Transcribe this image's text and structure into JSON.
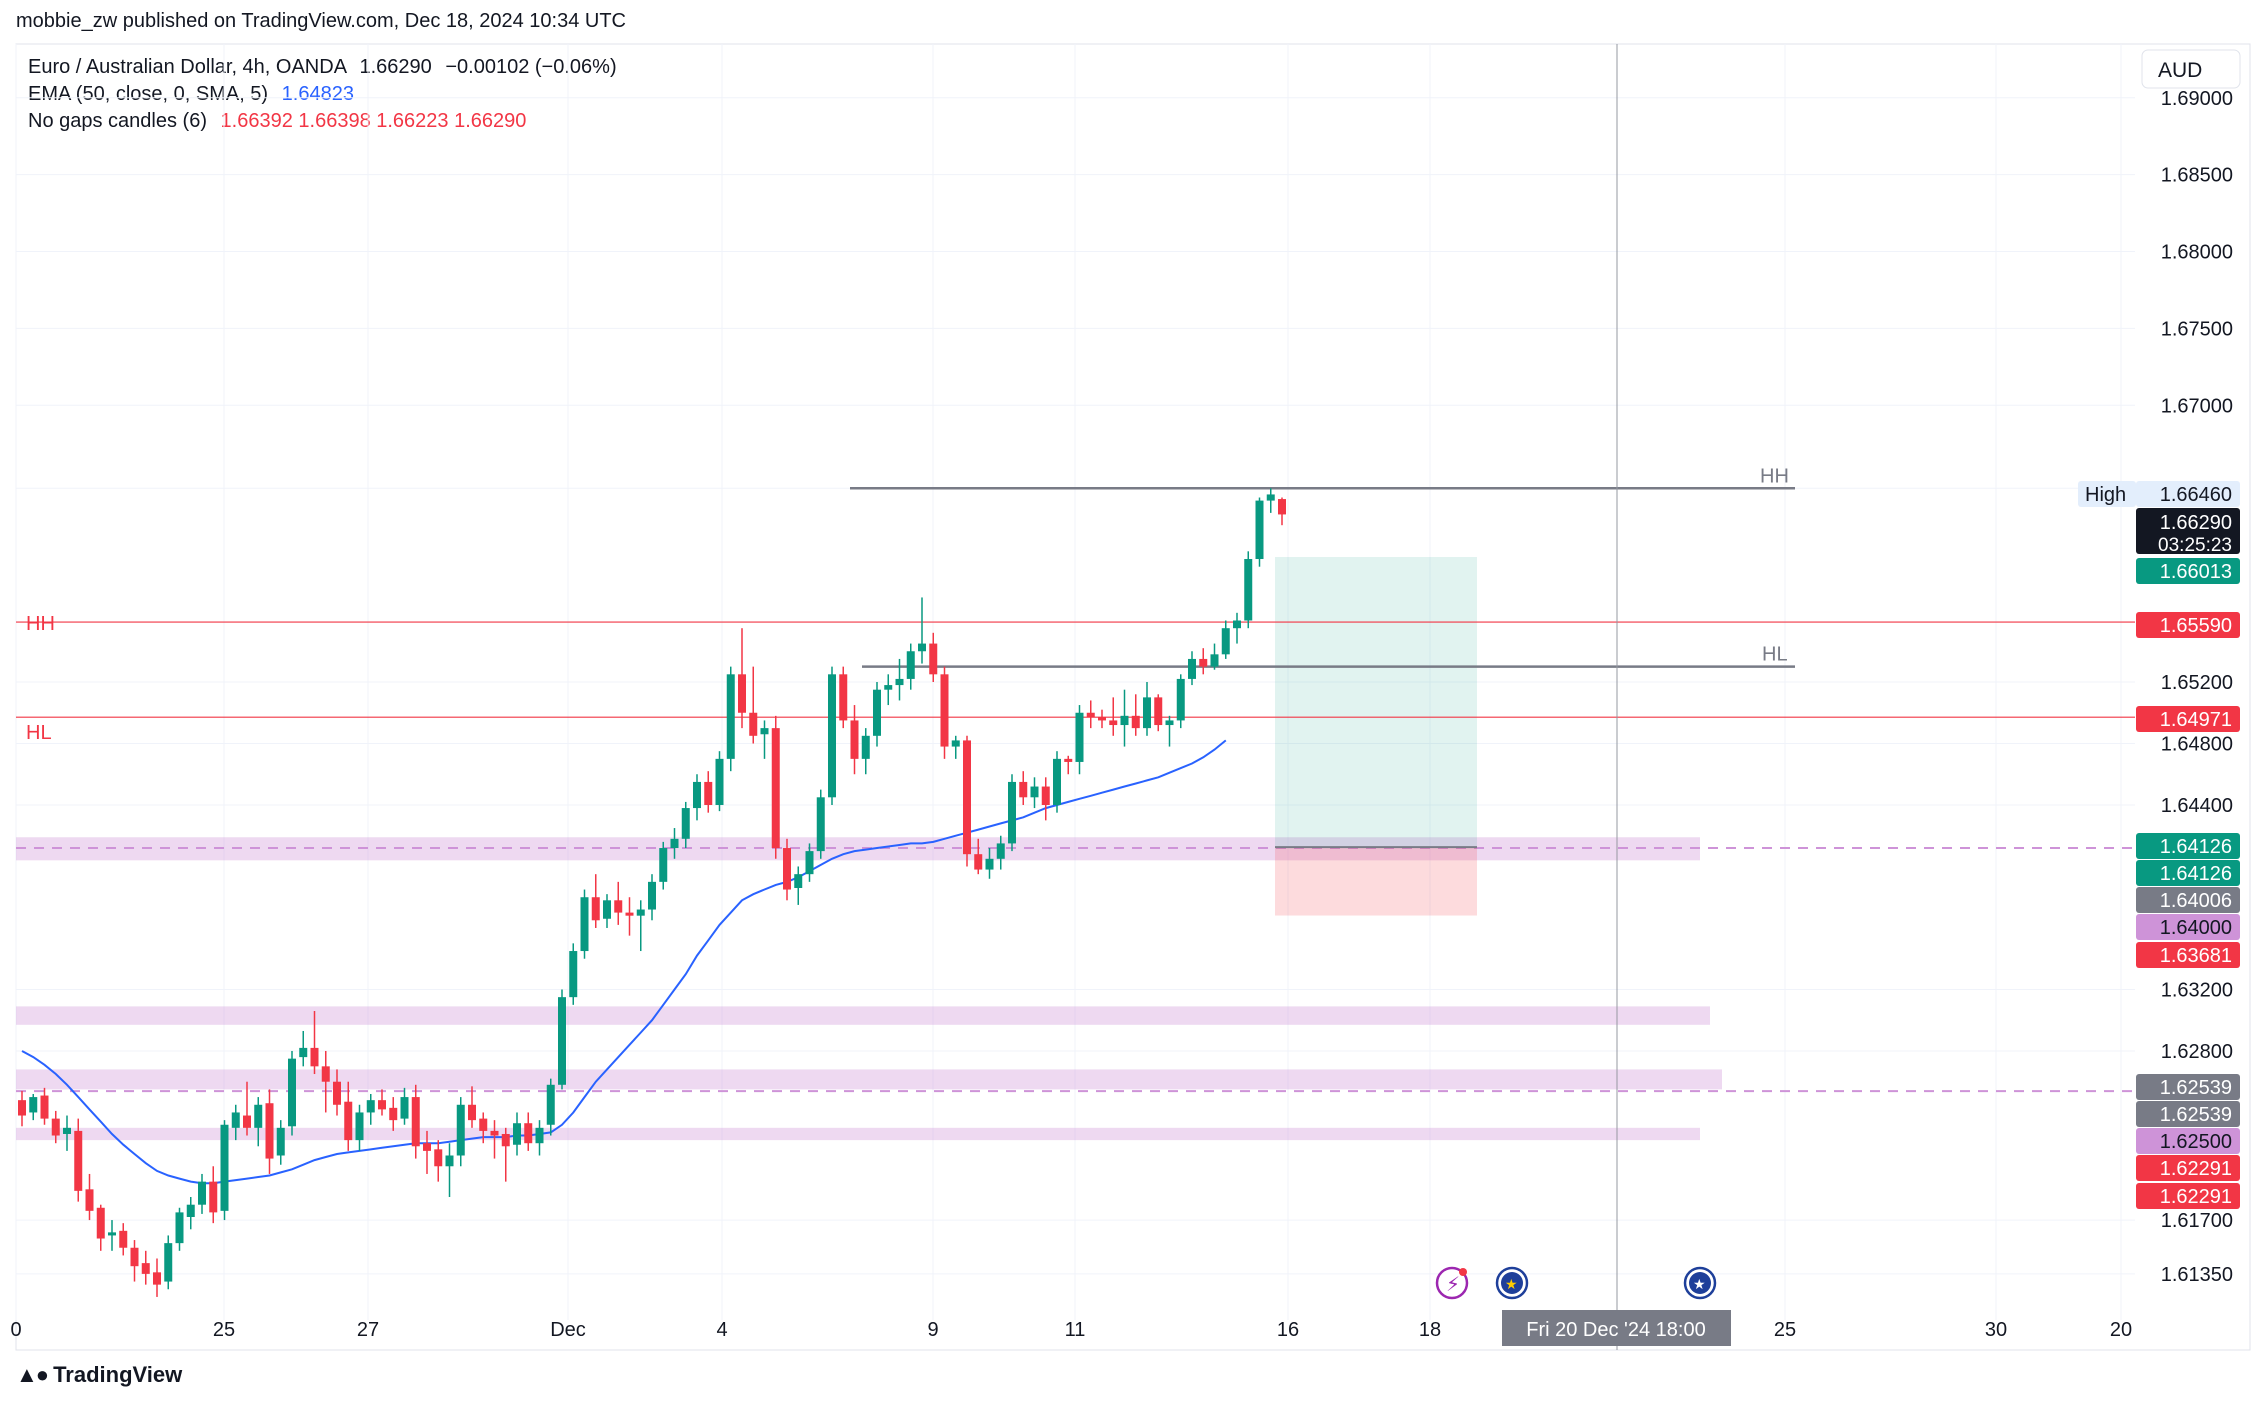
{
  "header": {
    "publisher": "mobbie_zw published on TradingView.com, Dec 18, 2024 10:34 UTC"
  },
  "legend": {
    "symbol_line": "Euro / Australian Dollar, 4h, OANDA",
    "symbol_price": "1.66290",
    "symbol_change": "−0.00102 (−0.06%)",
    "ema_label": "EMA (50, close, 0, SMA, 5)",
    "ema_value": "1.64823",
    "ngc_label": "No gaps candles (6)",
    "ngc_values": "1.66392  1.66398  1.66223  1.66290"
  },
  "footer": {
    "brand": "TradingView",
    "logo_icon": "tradingview-logo-icon"
  },
  "chart_data": {
    "type": "candlestick",
    "currency_label": "AUD",
    "ylim": [
      1.6105,
      1.6935
    ],
    "y_ticks": [
      "1.69000",
      "1.68500",
      "1.68000",
      "1.67500",
      "1.67000",
      "1.66460",
      "1.65200",
      "1.64800",
      "1.64400",
      "1.63200",
      "1.62800",
      "1.61700",
      "1.61350"
    ],
    "x_ticks": [
      "0",
      "25",
      "27",
      "Dec",
      "4",
      "9",
      "11",
      "16",
      "18",
      "25",
      "30",
      "20"
    ],
    "crosshair_label": "Fri 20 Dec '24   18:00",
    "price_labels": [
      {
        "prefix": "High",
        "value": "1.66460",
        "color": "#e3eefc",
        "text_color": "#131722"
      },
      {
        "value": "1.66290",
        "sub": "03:25:23",
        "color": "#131722",
        "text_color": "#ffffff"
      },
      {
        "value": "1.66013",
        "color": "#089981",
        "text_color": "#ffffff"
      },
      {
        "value": "1.65590",
        "color": "#f23645",
        "text_color": "#ffffff"
      },
      {
        "value": "1.64971",
        "color": "#f23645",
        "text_color": "#ffffff"
      },
      {
        "value": "1.64126",
        "color": "#089981",
        "text_color": "#ffffff"
      },
      {
        "value": "1.64126",
        "color": "#089981",
        "text_color": "#ffffff"
      },
      {
        "value": "1.64006",
        "color": "#787b86",
        "text_color": "#ffffff"
      },
      {
        "value": "1.64000",
        "color": "#ce93d8",
        "text_color": "#131722"
      },
      {
        "value": "1.63681",
        "color": "#f23645",
        "text_color": "#ffffff"
      },
      {
        "value": "1.62539",
        "color": "#787b86",
        "text_color": "#ffffff"
      },
      {
        "value": "1.62539",
        "color": "#787b86",
        "text_color": "#ffffff"
      },
      {
        "value": "1.62500",
        "color": "#ce93d8",
        "text_color": "#131722"
      },
      {
        "value": "1.62291",
        "color": "#f23645",
        "text_color": "#ffffff"
      },
      {
        "value": "1.62291",
        "color": "#f23645",
        "text_color": "#ffffff"
      }
    ],
    "annotations": [
      {
        "text": "HH",
        "price": 1.6559,
        "color": "#f23645"
      },
      {
        "text": "HL",
        "price": 1.64971,
        "color": "#f23645"
      },
      {
        "text": "HH",
        "price": 1.6646,
        "color": "#787b86"
      },
      {
        "text": "HL",
        "price": 1.653,
        "color": "#787b86"
      }
    ],
    "horizontal_lines": [
      {
        "price": 1.6559,
        "color": "#f23645"
      },
      {
        "price": 1.64971,
        "color": "#f23645"
      },
      {
        "price": 1.6646,
        "color": "#787b86"
      },
      {
        "price": 1.653,
        "color": "#787b86"
      }
    ],
    "zones": [
      {
        "from": 1.6404,
        "to": 1.6419,
        "color": "#ce93d8"
      },
      {
        "from": 1.6297,
        "to": 1.6309,
        "color": "#ce93d8"
      },
      {
        "from": 1.6255,
        "to": 1.6268,
        "color": "#ce93d8"
      },
      {
        "from": 1.6222,
        "to": 1.623,
        "color": "#ce93d8"
      }
    ],
    "dashed_levels": [
      1.6412,
      1.62539
    ],
    "position": {
      "entry": 1.64126,
      "target": 1.66013,
      "stop": 1.63681
    },
    "series": [
      {
        "name": "EMA (50, close, 0, SMA, 5)",
        "color": "#2962ff"
      }
    ],
    "events": [
      {
        "icon": "lightning-event-icon",
        "color": "#9c27b0"
      },
      {
        "icon": "eu-flag-icon",
        "color": "#1e3f9a"
      },
      {
        "icon": "au-flag-icon",
        "color": "#1e3f9a"
      }
    ],
    "candles_ohlc": [
      [
        1.6248,
        1.6254,
        1.6231,
        1.6238
      ],
      [
        1.624,
        1.6252,
        1.6235,
        1.625
      ],
      [
        1.6251,
        1.6256,
        1.6232,
        1.6236
      ],
      [
        1.6236,
        1.6241,
        1.622,
        1.6225
      ],
      [
        1.6226,
        1.6238,
        1.6215,
        1.623
      ],
      [
        1.6228,
        1.6236,
        1.6182,
        1.6189
      ],
      [
        1.619,
        1.62,
        1.617,
        1.6176
      ],
      [
        1.6178,
        1.618,
        1.615,
        1.6158
      ],
      [
        1.616,
        1.617,
        1.615,
        1.6162
      ],
      [
        1.6163,
        1.6168,
        1.6147,
        1.6152
      ],
      [
        1.6152,
        1.6157,
        1.613,
        1.614
      ],
      [
        1.6142,
        1.615,
        1.6128,
        1.6135
      ],
      [
        1.6136,
        1.6145,
        1.612,
        1.6128
      ],
      [
        1.613,
        1.616,
        1.6125,
        1.6155
      ],
      [
        1.6155,
        1.6178,
        1.615,
        1.6175
      ],
      [
        1.6172,
        1.6185,
        1.6164,
        1.618
      ],
      [
        1.618,
        1.62,
        1.6174,
        1.6195
      ],
      [
        1.6195,
        1.6205,
        1.6168,
        1.6175
      ],
      [
        1.6176,
        1.6235,
        1.617,
        1.6232
      ],
      [
        1.623,
        1.6245,
        1.6222,
        1.624
      ],
      [
        1.6238,
        1.626,
        1.6225,
        1.623
      ],
      [
        1.623,
        1.625,
        1.6218,
        1.6245
      ],
      [
        1.6246,
        1.6255,
        1.62,
        1.621
      ],
      [
        1.6212,
        1.6235,
        1.6206,
        1.623
      ],
      [
        1.6231,
        1.628,
        1.6225,
        1.6275
      ],
      [
        1.6276,
        1.6293,
        1.627,
        1.6282
      ],
      [
        1.6282,
        1.6306,
        1.6265,
        1.627
      ],
      [
        1.627,
        1.628,
        1.624,
        1.626
      ],
      [
        1.626,
        1.6268,
        1.6238,
        1.6245
      ],
      [
        1.6247,
        1.626,
        1.6215,
        1.6222
      ],
      [
        1.6222,
        1.6245,
        1.6215,
        1.624
      ],
      [
        1.624,
        1.6252,
        1.6232,
        1.6248
      ],
      [
        1.6248,
        1.6255,
        1.6238,
        1.6242
      ],
      [
        1.6243,
        1.625,
        1.6228,
        1.6235
      ],
      [
        1.6236,
        1.6256,
        1.6232,
        1.625
      ],
      [
        1.625,
        1.6258,
        1.621,
        1.6218
      ],
      [
        1.622,
        1.6228,
        1.62,
        1.6215
      ],
      [
        1.6216,
        1.6222,
        1.6195,
        1.6205
      ],
      [
        1.6205,
        1.622,
        1.6185,
        1.6212
      ],
      [
        1.6212,
        1.625,
        1.6205,
        1.6245
      ],
      [
        1.6245,
        1.6257,
        1.623,
        1.6235
      ],
      [
        1.6236,
        1.624,
        1.622,
        1.6228
      ],
      [
        1.6228,
        1.6235,
        1.621,
        1.6225
      ],
      [
        1.6226,
        1.623,
        1.6195,
        1.6218
      ],
      [
        1.6219,
        1.624,
        1.6212,
        1.6233
      ],
      [
        1.6233,
        1.624,
        1.6215,
        1.622
      ],
      [
        1.622,
        1.6235,
        1.6212,
        1.623
      ],
      [
        1.6232,
        1.6262,
        1.6225,
        1.6258
      ],
      [
        1.6258,
        1.632,
        1.6255,
        1.6315
      ],
      [
        1.6315,
        1.635,
        1.631,
        1.6345
      ],
      [
        1.6345,
        1.6385,
        1.634,
        1.638
      ],
      [
        1.638,
        1.6395,
        1.636,
        1.6365
      ],
      [
        1.6366,
        1.6382,
        1.636,
        1.6378
      ],
      [
        1.6378,
        1.639,
        1.6362,
        1.637
      ],
      [
        1.637,
        1.638,
        1.6355,
        1.6368
      ],
      [
        1.6368,
        1.6378,
        1.6345,
        1.6372
      ],
      [
        1.6372,
        1.6395,
        1.6365,
        1.639
      ],
      [
        1.639,
        1.6416,
        1.6385,
        1.6412
      ],
      [
        1.6412,
        1.6425,
        1.6405,
        1.6418
      ],
      [
        1.6418,
        1.6442,
        1.6412,
        1.6438
      ],
      [
        1.6438,
        1.646,
        1.643,
        1.6455
      ],
      [
        1.6455,
        1.6462,
        1.6435,
        1.644
      ],
      [
        1.644,
        1.6475,
        1.6436,
        1.647
      ],
      [
        1.647,
        1.653,
        1.6462,
        1.6525
      ],
      [
        1.6525,
        1.6555,
        1.649,
        1.65
      ],
      [
        1.65,
        1.653,
        1.648,
        1.6485
      ],
      [
        1.6486,
        1.6495,
        1.647,
        1.649
      ],
      [
        1.649,
        1.6498,
        1.6405,
        1.6412
      ],
      [
        1.6412,
        1.6418,
        1.6378,
        1.6385
      ],
      [
        1.6386,
        1.64,
        1.6375,
        1.6395
      ],
      [
        1.6395,
        1.6415,
        1.639,
        1.641
      ],
      [
        1.641,
        1.645,
        1.6405,
        1.6445
      ],
      [
        1.6445,
        1.653,
        1.644,
        1.6525
      ],
      [
        1.6525,
        1.653,
        1.649,
        1.6495
      ],
      [
        1.6495,
        1.6505,
        1.646,
        1.647
      ],
      [
        1.647,
        1.649,
        1.646,
        1.6485
      ],
      [
        1.6485,
        1.652,
        1.6478,
        1.6515
      ],
      [
        1.6515,
        1.6525,
        1.6505,
        1.6518
      ],
      [
        1.6518,
        1.6535,
        1.6508,
        1.6522
      ],
      [
        1.6522,
        1.6545,
        1.6515,
        1.654
      ],
      [
        1.654,
        1.6575,
        1.6532,
        1.6545
      ],
      [
        1.6545,
        1.6552,
        1.652,
        1.6525
      ],
      [
        1.6525,
        1.653,
        1.647,
        1.6478
      ],
      [
        1.6478,
        1.6485,
        1.647,
        1.6482
      ],
      [
        1.6482,
        1.6485,
        1.64,
        1.6408
      ],
      [
        1.6408,
        1.6418,
        1.6395,
        1.6398
      ],
      [
        1.6398,
        1.6412,
        1.6392,
        1.6405
      ],
      [
        1.6405,
        1.642,
        1.6398,
        1.6415
      ],
      [
        1.6415,
        1.646,
        1.641,
        1.6455
      ],
      [
        1.6455,
        1.6462,
        1.644,
        1.6445
      ],
      [
        1.6445,
        1.6458,
        1.6438,
        1.6452
      ],
      [
        1.6452,
        1.6458,
        1.643,
        1.644
      ],
      [
        1.644,
        1.6475,
        1.6435,
        1.647
      ],
      [
        1.647,
        1.6472,
        1.646,
        1.6468
      ],
      [
        1.6468,
        1.6505,
        1.646,
        1.65
      ],
      [
        1.65,
        1.6508,
        1.649,
        1.6497
      ],
      [
        1.6497,
        1.6502,
        1.649,
        1.6495
      ],
      [
        1.6495,
        1.651,
        1.6485,
        1.6492
      ],
      [
        1.6492,
        1.6515,
        1.6478,
        1.6498
      ],
      [
        1.6498,
        1.6512,
        1.6485,
        1.649
      ],
      [
        1.649,
        1.652,
        1.6485,
        1.651
      ],
      [
        1.651,
        1.6512,
        1.6488,
        1.6492
      ],
      [
        1.6492,
        1.6498,
        1.6478,
        1.6495
      ],
      [
        1.6495,
        1.6525,
        1.649,
        1.6522
      ],
      [
        1.6522,
        1.654,
        1.6518,
        1.6535
      ],
      [
        1.6535,
        1.6542,
        1.6525,
        1.653
      ],
      [
        1.653,
        1.6545,
        1.6528,
        1.6538
      ],
      [
        1.6538,
        1.656,
        1.6535,
        1.6555
      ],
      [
        1.6555,
        1.6565,
        1.6545,
        1.656
      ],
      [
        1.656,
        1.6605,
        1.6555,
        1.66
      ],
      [
        1.66,
        1.664,
        1.6595,
        1.6638
      ],
      [
        1.6638,
        1.6646,
        1.663,
        1.6642
      ],
      [
        1.6639,
        1.664,
        1.6622,
        1.6629
      ]
    ],
    "ema_values": [
      1.628,
      1.6276,
      1.6271,
      1.6265,
      1.6258,
      1.625,
      1.6242,
      1.6234,
      1.6226,
      1.6219,
      1.6213,
      1.6207,
      1.6202,
      1.6199,
      1.6197,
      1.6195,
      1.6194,
      1.6194,
      1.6195,
      1.6196,
      1.6197,
      1.6198,
      1.6199,
      1.6201,
      1.6203,
      1.6206,
      1.6209,
      1.6211,
      1.6213,
      1.6214,
      1.6215,
      1.6216,
      1.6217,
      1.6218,
      1.6219,
      1.622,
      1.622,
      1.622,
      1.6221,
      1.6222,
      1.6223,
      1.6224,
      1.6224,
      1.6224,
      1.6225,
      1.6225,
      1.6226,
      1.6227,
      1.6232,
      1.624,
      1.625,
      1.626,
      1.6268,
      1.6276,
      1.6284,
      1.6292,
      1.63,
      1.631,
      1.632,
      1.633,
      1.6342,
      1.6352,
      1.6362,
      1.637,
      1.6378,
      1.6382,
      1.6385,
      1.6388,
      1.639,
      1.6393,
      1.6397,
      1.6401,
      1.6405,
      1.6408,
      1.641,
      1.6411,
      1.6412,
      1.6413,
      1.6414,
      1.6415,
      1.6415,
      1.6416,
      1.6418,
      1.642,
      1.6422,
      1.6424,
      1.6426,
      1.6428,
      1.643,
      1.6432,
      1.6435,
      1.6438,
      1.644,
      1.6442,
      1.6444,
      1.6446,
      1.6448,
      1.645,
      1.6452,
      1.6454,
      1.6456,
      1.6458,
      1.6461,
      1.6464,
      1.6467,
      1.6471,
      1.6476,
      1.6482
    ]
  }
}
